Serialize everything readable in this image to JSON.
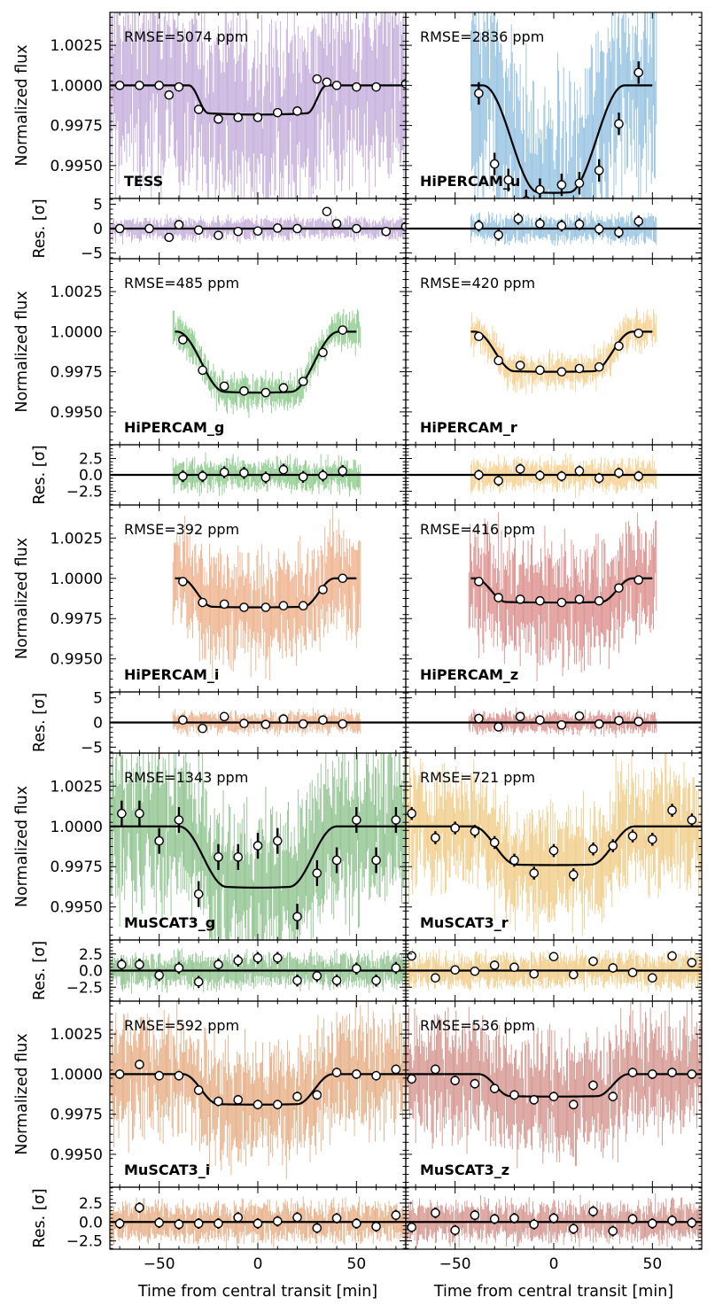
{
  "chart_data": {
    "type": "scatter",
    "x_label": "Time from central transit [min]",
    "flux_label": "Normalized flux",
    "res_label": "Res. [σ]",
    "xlim": [
      -75,
      75
    ],
    "flux_ylim": [
      0.99295,
      1.00455
    ],
    "flux_ticks": [
      "1.0025",
      "1.0000",
      "0.9975",
      "0.9950"
    ],
    "flux_tick_values": [
      1.0025,
      1.0,
      0.9975,
      0.995
    ],
    "x_ticks": [
      "−50",
      "0",
      "50"
    ],
    "x_tick_values": [
      -50,
      0,
      50
    ],
    "panels": [
      {
        "instrument": "TESS",
        "rmse": "RMSE=5074 ppm",
        "color": "#9467bd",
        "raw_range": [
          -75,
          75
        ],
        "raw_noise": 0.0055,
        "model_range": [
          -75,
          75
        ],
        "depth": 0.00182,
        "t14": 70,
        "t12": 10,
        "curve": 0.15,
        "res_ylim": [
          -6.2,
          6.2
        ],
        "res_ticks": [
          "5",
          "0",
          "−5"
        ],
        "res_tick_values": [
          5,
          0,
          -5
        ],
        "res_noise": 2.2,
        "bin_t": [
          -70,
          -60,
          -50,
          -45,
          -40,
          -30,
          -20,
          -10,
          0,
          10,
          20,
          30,
          35,
          40,
          50,
          60,
          75
        ],
        "bin_f": [
          1.0,
          1.0,
          1.0,
          0.9994,
          0.9999,
          0.9985,
          0.9979,
          0.998,
          0.998,
          0.9983,
          0.9984,
          1.0004,
          1.0002,
          1.0,
          0.9999,
          0.9999,
          1.0001
        ],
        "bin_err": [
          0,
          0,
          0,
          0,
          0,
          0,
          0,
          0,
          0,
          0,
          0,
          0,
          0,
          0,
          0,
          0,
          0
        ],
        "res_t": [
          -70,
          -55,
          -45,
          -40,
          -30,
          -20,
          -10,
          0,
          10,
          20,
          35,
          40,
          50,
          65,
          75
        ],
        "res_v": [
          0,
          0,
          -1.8,
          0.8,
          -0.3,
          -1.4,
          -0.6,
          -0.5,
          0.1,
          0,
          3.5,
          1,
          0,
          -0.6,
          0.4
        ],
        "res_err": [
          0,
          0,
          0,
          0,
          0,
          0,
          0,
          0,
          0,
          0,
          0,
          0,
          0,
          0,
          0
        ]
      },
      {
        "instrument": "HiPERCAM_u",
        "rmse": "RMSE=2836 ppm",
        "color": "#3a8ec9",
        "raw_range": [
          -42,
          52
        ],
        "raw_noise": 0.006,
        "model_range": [
          -42,
          50
        ],
        "depth": 0.0067,
        "t14": 72,
        "t12": 28,
        "curve": 0.2,
        "res_ylim": [
          -6.2,
          6.2
        ],
        "res_ticks": [
          "5",
          "0",
          "−5"
        ],
        "res_tick_values": [
          5,
          0,
          -5
        ],
        "res_noise": 2.8,
        "bin_t": [
          -38,
          -30,
          -23,
          -14,
          -7,
          4,
          13,
          23,
          33,
          43
        ],
        "bin_f": [
          0.9995,
          0.9951,
          0.9941,
          0.9928,
          0.9935,
          0.9938,
          0.9939,
          0.9947,
          0.9976,
          1.0008
        ],
        "bin_err": [
          0.0007,
          0.0007,
          0.0007,
          0.0007,
          0.0007,
          0.0007,
          0.0007,
          0.0007,
          0.0007,
          0.0007
        ],
        "res_t": [
          -38,
          -28,
          -18,
          -7,
          4,
          13,
          23,
          33,
          43
        ],
        "res_v": [
          0.6,
          -1.3,
          2,
          1,
          0.6,
          0.9,
          -0.1,
          -0.8,
          1.5
        ],
        "res_err": [
          1.2,
          1.2,
          1.2,
          1.2,
          1.2,
          1.2,
          1.2,
          1.2,
          1.2
        ]
      },
      {
        "instrument": "HiPERCAM_g",
        "rmse": "RMSE=485 ppm",
        "color": "#2ca02c",
        "raw_range": [
          -43,
          52
        ],
        "raw_noise": 0.0011,
        "model_range": [
          -42,
          50
        ],
        "depth": 0.0038,
        "t14": 82,
        "t12": 24,
        "curve": 0.15,
        "res_ylim": [
          -4.6,
          4.6
        ],
        "res_ticks": [
          "2.5",
          "0.0",
          "−2.5"
        ],
        "res_tick_values": [
          2.5,
          0,
          -2.5
        ],
        "res_noise": 2.4,
        "bin_t": [
          -38,
          -28,
          -17,
          -7,
          4,
          13,
          23,
          33,
          43
        ],
        "bin_f": [
          0.9995,
          0.9976,
          0.9966,
          0.9963,
          0.9962,
          0.9965,
          0.9969,
          0.9987,
          1.0001
        ],
        "bin_err": [
          0,
          0,
          0,
          0,
          0,
          0,
          0,
          0,
          0
        ],
        "res_t": [
          -38,
          -28,
          -17,
          -7,
          4,
          13,
          23,
          33,
          43
        ],
        "res_v": [
          -0.2,
          -0.2,
          0.4,
          0.3,
          -0.4,
          0.8,
          -0.3,
          -0.1,
          0.6
        ],
        "res_err": [
          0.9,
          0.9,
          0.9,
          0.9,
          0.9,
          0.9,
          0.9,
          0.9,
          0.9
        ]
      },
      {
        "instrument": "HiPERCAM_r",
        "rmse": "RMSE=420 ppm",
        "color": "#f0a830",
        "raw_range": [
          -42,
          52
        ],
        "raw_noise": 0.0011,
        "model_range": [
          -42,
          50
        ],
        "depth": 0.0025,
        "t14": 80,
        "t12": 20,
        "curve": 0.1,
        "res_ylim": [
          -4.6,
          4.6
        ],
        "res_ticks": [
          "2.5",
          "0.0",
          "−2.5"
        ],
        "res_tick_values": [
          2.5,
          0,
          -2.5
        ],
        "res_noise": 2.4,
        "bin_t": [
          -38,
          -28,
          -17,
          -7,
          4,
          13,
          23,
          33,
          43
        ],
        "bin_f": [
          0.9997,
          0.9982,
          0.9979,
          0.9976,
          0.9975,
          0.9977,
          0.9978,
          0.9991,
          0.9999
        ],
        "bin_err": [
          0,
          0,
          0,
          0,
          0,
          0,
          0,
          0,
          0
        ],
        "res_t": [
          -38,
          -28,
          -17,
          -7,
          4,
          13,
          23,
          33,
          43
        ],
        "res_v": [
          0,
          -0.9,
          0.9,
          -0.1,
          -0.2,
          0.6,
          -0.5,
          0.3,
          -0.2
        ],
        "res_err": [
          0.8,
          0.8,
          0.8,
          0.8,
          0.8,
          0.8,
          0.8,
          0.8,
          0.8
        ]
      },
      {
        "instrument": "HiPERCAM_i",
        "rmse": "RMSE=392 ppm",
        "color": "#e0702a",
        "raw_range": [
          -43,
          52
        ],
        "raw_noise": 0.0032,
        "model_range": [
          -42,
          50
        ],
        "depth": 0.0018,
        "t14": 78,
        "t12": 16,
        "curve": 0.1,
        "res_ylim": [
          -6.2,
          6.2
        ],
        "res_ticks": [
          "5",
          "0",
          "−5"
        ],
        "res_tick_values": [
          5,
          0,
          -5
        ],
        "res_noise": 2.2,
        "bin_t": [
          -38,
          -28,
          -17,
          -7,
          4,
          13,
          23,
          33,
          43
        ],
        "bin_f": [
          0.9998,
          0.9985,
          0.9984,
          0.9982,
          0.9982,
          0.9983,
          0.9983,
          0.9993,
          1.0
        ],
        "bin_err": [
          0,
          0,
          0,
          0,
          0,
          0,
          0,
          0,
          0
        ],
        "res_t": [
          -38,
          -28,
          -17,
          -7,
          4,
          13,
          23,
          33,
          43
        ],
        "res_v": [
          0.5,
          -1.2,
          1.2,
          -0.2,
          -0.4,
          0.7,
          -0.3,
          0.5,
          -0.3
        ],
        "res_err": [
          0.4,
          0.4,
          0.4,
          0.4,
          0.4,
          0.4,
          0.4,
          0.4,
          0.4
        ]
      },
      {
        "instrument": "HiPERCAM_z",
        "rmse": "RMSE=416 ppm",
        "color": "#c0302a",
        "raw_range": [
          -43,
          52
        ],
        "raw_noise": 0.0035,
        "model_range": [
          -42,
          50
        ],
        "depth": 0.0015,
        "t14": 80,
        "t12": 16,
        "curve": 0.1,
        "res_ylim": [
          -6.2,
          6.2
        ],
        "res_ticks": [
          "5",
          "0",
          "−5"
        ],
        "res_tick_values": [
          5,
          0,
          -5
        ],
        "res_noise": 2.2,
        "bin_t": [
          -38,
          -28,
          -17,
          -7,
          4,
          13,
          23,
          33,
          43
        ],
        "bin_f": [
          0.9998,
          0.9988,
          0.9987,
          0.9986,
          0.9985,
          0.9987,
          0.9986,
          0.9994,
          0.9999
        ],
        "bin_err": [
          0,
          0,
          0,
          0,
          0,
          0,
          0,
          0,
          0
        ],
        "res_t": [
          -38,
          -28,
          -17,
          -7,
          4,
          13,
          23,
          33,
          43
        ],
        "res_v": [
          0.8,
          -0.9,
          1.2,
          0.5,
          -0.5,
          1.3,
          -0.3,
          0.4,
          0.2
        ],
        "res_err": [
          0.4,
          0.4,
          0.4,
          0.4,
          0.4,
          0.4,
          0.4,
          0.4,
          0.4
        ]
      },
      {
        "instrument": "MuSCAT3_g",
        "rmse": "RMSE=1343 ppm",
        "color": "#2f8f2f",
        "raw_range": [
          -75,
          75
        ],
        "raw_noise": 0.0045,
        "model_range": [
          -75,
          75
        ],
        "depth": 0.0038,
        "t14": 80,
        "t12": 24,
        "curve": 0.15,
        "res_ylim": [
          -4.6,
          4.6
        ],
        "res_ticks": [
          "2.5",
          "0.0",
          "−2.5"
        ],
        "res_tick_values": [
          2.5,
          0,
          -2.5
        ],
        "res_noise": 2.6,
        "bin_t": [
          -69,
          -60,
          -50,
          -40,
          -30,
          -20,
          -10,
          0,
          10,
          20,
          30,
          40,
          50,
          60,
          70
        ],
        "bin_f": [
          1.0008,
          1.0008,
          0.9991,
          1.0004,
          0.9958,
          0.9981,
          0.9981,
          0.9988,
          0.9991,
          0.9944,
          0.9971,
          0.9979,
          1.0004,
          0.9979,
          1.0004
        ],
        "bin_err": [
          0.0008,
          0.0008,
          0.0008,
          0.0008,
          0.0008,
          0.0008,
          0.0008,
          0.0008,
          0.0008,
          0.0008,
          0.0008,
          0.0008,
          0.0008,
          0.0008,
          0.0008
        ],
        "res_t": [
          -69,
          -60,
          -50,
          -40,
          -30,
          -20,
          -10,
          0,
          10,
          20,
          30,
          40,
          50,
          60,
          70
        ],
        "res_v": [
          0.9,
          0.9,
          -0.7,
          0.4,
          -1.7,
          0.9,
          1.5,
          1.9,
          1.9,
          -1.5,
          -0.8,
          -1.5,
          0.3,
          -1.5,
          0.4
        ],
        "res_err": [
          0.9,
          0.9,
          0.9,
          0.9,
          0.9,
          0.9,
          0.9,
          0.9,
          0.9,
          0.9,
          0.9,
          0.9,
          0.9,
          0.9,
          0.9
        ]
      },
      {
        "instrument": "MuSCAT3_r",
        "rmse": "RMSE=721 ppm",
        "color": "#e6a020",
        "raw_range": [
          -75,
          75
        ],
        "raw_noise": 0.0035,
        "model_range": [
          -75,
          75
        ],
        "depth": 0.0024,
        "t14": 82,
        "t12": 22,
        "curve": 0.1,
        "res_ylim": [
          -4.6,
          4.6
        ],
        "res_ticks": [
          "2.5",
          "0.0",
          "−2.5"
        ],
        "res_tick_values": [
          2.5,
          0,
          -2.5
        ],
        "res_noise": 2.6,
        "bin_t": [
          -72,
          -60,
          -50,
          -40,
          -30,
          -20,
          -10,
          0,
          10,
          20,
          30,
          40,
          50,
          60,
          70
        ],
        "bin_f": [
          1.0008,
          0.9993,
          0.9999,
          0.9997,
          0.999,
          0.9979,
          0.9971,
          0.9985,
          0.997,
          0.9986,
          0.9988,
          0.9994,
          0.9992,
          1.001,
          1.0004
        ],
        "bin_err": [
          0.0004,
          0.0004,
          0.0004,
          0.0004,
          0.0004,
          0.0004,
          0.0004,
          0.0004,
          0.0004,
          0.0004,
          0.0004,
          0.0004,
          0.0004,
          0.0004,
          0.0004
        ],
        "res_t": [
          -72,
          -60,
          -50,
          -40,
          -30,
          -20,
          -10,
          0,
          10,
          20,
          30,
          40,
          50,
          60,
          70
        ],
        "res_v": [
          2.2,
          -1.1,
          0.1,
          -0.1,
          0.8,
          0.5,
          -0.5,
          2.1,
          -0.6,
          1.4,
          0.4,
          -0.3,
          -1.1,
          2.2,
          1.2
        ],
        "res_err": [
          0.7,
          0.7,
          0.7,
          0.7,
          0.7,
          0.7,
          0.7,
          0.7,
          0.7,
          0.7,
          0.7,
          0.7,
          0.7,
          0.7,
          0.7
        ]
      },
      {
        "instrument": "MuSCAT3_i",
        "rmse": "RMSE=592 ppm",
        "color": "#d2691e",
        "raw_range": [
          -75,
          75
        ],
        "raw_noise": 0.0035,
        "model_range": [
          -75,
          75
        ],
        "depth": 0.0019,
        "t14": 76,
        "t12": 18,
        "curve": 0.1,
        "res_ylim": [
          -3.6,
          4.6
        ],
        "res_ticks": [
          "2.5",
          "0.0",
          "−2.5"
        ],
        "res_tick_values": [
          2.5,
          0,
          -2.5
        ],
        "res_noise": 2.6,
        "bin_t": [
          -70,
          -60,
          -50,
          -40,
          -30,
          -20,
          -10,
          0,
          10,
          20,
          30,
          40,
          50,
          60,
          70
        ],
        "bin_f": [
          1.0,
          1.0006,
          0.9999,
          0.9999,
          0.999,
          0.9983,
          0.9984,
          0.9981,
          0.9981,
          0.9986,
          0.9987,
          1.0001,
          1.0,
          0.9999,
          1.0003
        ],
        "bin_err": [
          0.0003,
          0.0003,
          0.0003,
          0.0003,
          0.0003,
          0.0003,
          0.0003,
          0.0003,
          0.0003,
          0.0003,
          0.0003,
          0.0003,
          0.0003,
          0.0003,
          0.0003
        ],
        "res_t": [
          -70,
          -60,
          -50,
          -40,
          -30,
          -20,
          -10,
          0,
          10,
          20,
          30,
          40,
          50,
          60,
          70
        ],
        "res_v": [
          -0.2,
          1.9,
          -0.1,
          -0.3,
          -0.2,
          -0.2,
          0.6,
          -0.2,
          0.1,
          0.6,
          -0.8,
          0.5,
          -0.2,
          -0.6,
          0.9
        ],
        "res_err": [
          0.7,
          0.7,
          0.7,
          0.7,
          0.7,
          0.7,
          0.7,
          0.7,
          0.7,
          0.7,
          0.7,
          0.7,
          0.7,
          0.7,
          0.7
        ]
      },
      {
        "instrument": "MuSCAT3_z",
        "rmse": "RMSE=536 ppm",
        "color": "#b03a2e",
        "raw_range": [
          -75,
          75
        ],
        "raw_noise": 0.0035,
        "model_range": [
          -75,
          75
        ],
        "depth": 0.0014,
        "t14": 76,
        "t12": 16,
        "curve": 0.1,
        "res_ylim": [
          -3.6,
          4.6
        ],
        "res_ticks": [
          "2.5",
          "0.0",
          "−2.5"
        ],
        "res_tick_values": [
          2.5,
          0,
          -2.5
        ],
        "res_noise": 2.6,
        "bin_t": [
          -72,
          -60,
          -50,
          -40,
          -30,
          -20,
          -10,
          0,
          10,
          20,
          30,
          40,
          50,
          60,
          70
        ],
        "bin_f": [
          0.9997,
          1.0003,
          0.9996,
          0.9994,
          0.9991,
          0.9987,
          0.9984,
          0.9986,
          0.9981,
          0.9993,
          0.9986,
          1.0001,
          1.0,
          1.0001,
          1.0
        ],
        "bin_err": [
          0.0003,
          0.0003,
          0.0003,
          0.0003,
          0.0003,
          0.0003,
          0.0003,
          0.0003,
          0.0003,
          0.0003,
          0.0003,
          0.0003,
          0.0003,
          0.0003,
          0.0003
        ],
        "res_t": [
          -72,
          -60,
          -50,
          -40,
          -30,
          -20,
          -10,
          0,
          10,
          20,
          30,
          40,
          50,
          60,
          70
        ],
        "res_v": [
          -0.7,
          1.2,
          -1.1,
          0.9,
          0.4,
          0.5,
          -0.3,
          0.5,
          -0.9,
          1.4,
          -1.2,
          0.4,
          -0.2,
          0.2,
          -0.1
        ],
        "res_err": [
          0.7,
          0.7,
          0.7,
          0.7,
          0.7,
          0.7,
          0.7,
          0.7,
          0.7,
          0.7,
          0.7,
          0.7,
          0.7,
          0.7,
          0.7
        ]
      }
    ]
  }
}
